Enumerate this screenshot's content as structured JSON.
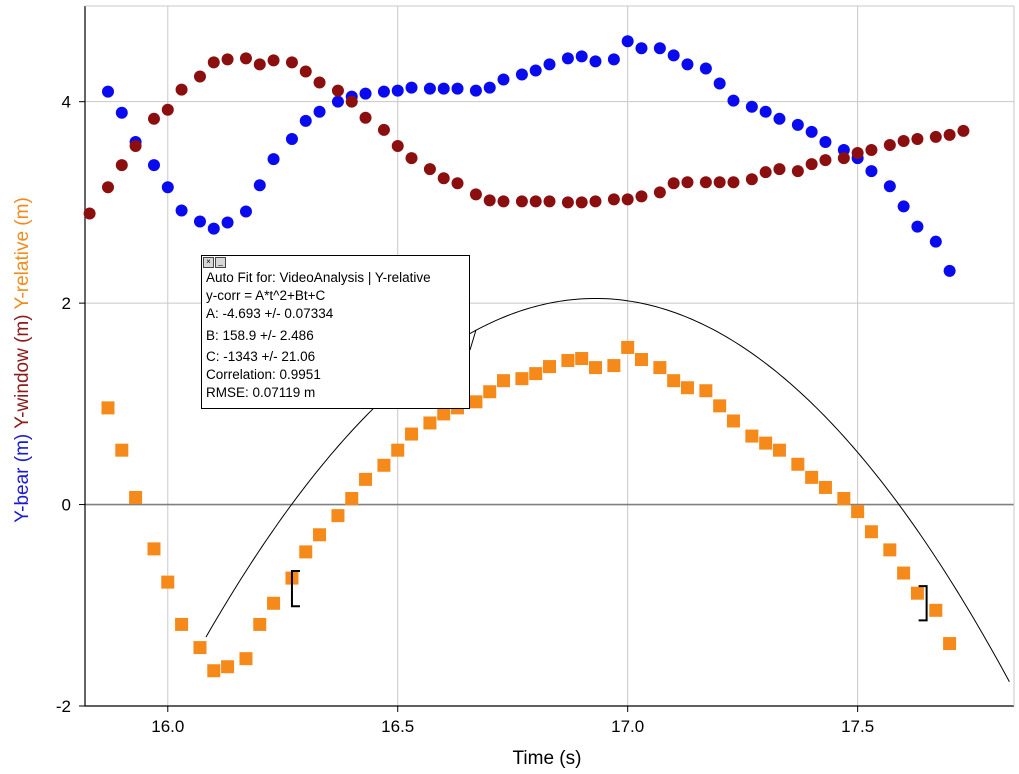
{
  "chart_data": {
    "type": "scatter",
    "xlabel": "Time (s)",
    "ylabels": [
      {
        "text": "Y-bear (m)",
        "color": "#1a1ad4"
      },
      {
        "text": "Y-window (m)",
        "color": "#8b1a1a"
      },
      {
        "text": "Y-relative (m)",
        "color": "#f08c1e"
      }
    ],
    "xlim": [
      15.82,
      17.84
    ],
    "ylim": [
      -2,
      4.95
    ],
    "x_ticks": [
      16.0,
      16.5,
      17.0,
      17.5
    ],
    "x_tick_labels": [
      "16.0",
      "16.5",
      "17.0",
      "17.5"
    ],
    "y_ticks": [
      -2,
      0,
      2,
      4
    ],
    "y_tick_labels": [
      "-2",
      "0",
      "2",
      "4"
    ],
    "grid": true,
    "series": [
      {
        "name": "Y-bear",
        "color": "#0a0aee",
        "marker": "circle",
        "points": [
          [
            15.87,
            4.1
          ],
          [
            15.9,
            3.89
          ],
          [
            15.93,
            3.6
          ],
          [
            15.97,
            3.37
          ],
          [
            16.0,
            3.15
          ],
          [
            16.03,
            2.92
          ],
          [
            16.07,
            2.81
          ],
          [
            16.1,
            2.74
          ],
          [
            16.13,
            2.8
          ],
          [
            16.17,
            2.91
          ],
          [
            16.2,
            3.17
          ],
          [
            16.23,
            3.43
          ],
          [
            16.27,
            3.63
          ],
          [
            16.3,
            3.81
          ],
          [
            16.33,
            3.9
          ],
          [
            16.37,
            4.0
          ],
          [
            16.4,
            4.05
          ],
          [
            16.43,
            4.08
          ],
          [
            16.47,
            4.1
          ],
          [
            16.5,
            4.11
          ],
          [
            16.53,
            4.14
          ],
          [
            16.57,
            4.13
          ],
          [
            16.6,
            4.13
          ],
          [
            16.63,
            4.13
          ],
          [
            16.67,
            4.11
          ],
          [
            16.7,
            4.14
          ],
          [
            16.73,
            4.22
          ],
          [
            16.77,
            4.27
          ],
          [
            16.8,
            4.31
          ],
          [
            16.83,
            4.37
          ],
          [
            16.87,
            4.43
          ],
          [
            16.9,
            4.45
          ],
          [
            16.93,
            4.4
          ],
          [
            16.97,
            4.42
          ],
          [
            17.0,
            4.6
          ],
          [
            17.03,
            4.53
          ],
          [
            17.07,
            4.53
          ],
          [
            17.1,
            4.46
          ],
          [
            17.13,
            4.37
          ],
          [
            17.17,
            4.33
          ],
          [
            17.2,
            4.18
          ],
          [
            17.23,
            4.01
          ],
          [
            17.27,
            3.95
          ],
          [
            17.3,
            3.9
          ],
          [
            17.33,
            3.83
          ],
          [
            17.37,
            3.77
          ],
          [
            17.4,
            3.7
          ],
          [
            17.43,
            3.6
          ],
          [
            17.47,
            3.52
          ],
          [
            17.5,
            3.44
          ],
          [
            17.53,
            3.31
          ],
          [
            17.57,
            3.16
          ],
          [
            17.6,
            2.96
          ],
          [
            17.63,
            2.76
          ],
          [
            17.67,
            2.61
          ],
          [
            17.7,
            2.32
          ]
        ]
      },
      {
        "name": "Y-window",
        "color": "#8c0f0f",
        "marker": "circle",
        "points": [
          [
            15.83,
            2.89
          ],
          [
            15.87,
            3.15
          ],
          [
            15.9,
            3.37
          ],
          [
            15.93,
            3.56
          ],
          [
            15.97,
            3.83
          ],
          [
            16.0,
            3.92
          ],
          [
            16.03,
            4.12
          ],
          [
            16.07,
            4.25
          ],
          [
            16.1,
            4.39
          ],
          [
            16.13,
            4.42
          ],
          [
            16.17,
            4.43
          ],
          [
            16.2,
            4.37
          ],
          [
            16.23,
            4.41
          ],
          [
            16.27,
            4.39
          ],
          [
            16.3,
            4.3
          ],
          [
            16.33,
            4.19
          ],
          [
            16.37,
            4.11
          ],
          [
            16.4,
            4.0
          ],
          [
            16.43,
            3.84
          ],
          [
            16.47,
            3.72
          ],
          [
            16.5,
            3.56
          ],
          [
            16.53,
            3.44
          ],
          [
            16.57,
            3.33
          ],
          [
            16.6,
            3.24
          ],
          [
            16.63,
            3.19
          ],
          [
            16.67,
            3.08
          ],
          [
            16.7,
            3.02
          ],
          [
            16.73,
            3.01
          ],
          [
            16.77,
            3.01
          ],
          [
            16.8,
            3.01
          ],
          [
            16.83,
            3.01
          ],
          [
            16.87,
            3.0
          ],
          [
            16.9,
            3.0
          ],
          [
            16.93,
            3.01
          ],
          [
            16.97,
            3.03
          ],
          [
            17.0,
            3.03
          ],
          [
            17.03,
            3.06
          ],
          [
            17.07,
            3.1
          ],
          [
            17.1,
            3.19
          ],
          [
            17.13,
            3.2
          ],
          [
            17.17,
            3.2
          ],
          [
            17.2,
            3.2
          ],
          [
            17.23,
            3.2
          ],
          [
            17.27,
            3.23
          ],
          [
            17.3,
            3.3
          ],
          [
            17.33,
            3.33
          ],
          [
            17.37,
            3.31
          ],
          [
            17.4,
            3.38
          ],
          [
            17.43,
            3.42
          ],
          [
            17.47,
            3.44
          ],
          [
            17.5,
            3.49
          ],
          [
            17.53,
            3.52
          ],
          [
            17.57,
            3.57
          ],
          [
            17.6,
            3.61
          ],
          [
            17.63,
            3.63
          ],
          [
            17.67,
            3.65
          ],
          [
            17.7,
            3.67
          ],
          [
            17.73,
            3.71
          ]
        ]
      },
      {
        "name": "Y-relative",
        "color": "#f58a1a",
        "marker": "square",
        "points": [
          [
            15.87,
            0.96
          ],
          [
            15.9,
            0.54
          ],
          [
            15.93,
            0.07
          ],
          [
            15.97,
            -0.44
          ],
          [
            16.0,
            -0.77
          ],
          [
            16.03,
            -1.19
          ],
          [
            16.07,
            -1.42
          ],
          [
            16.1,
            -1.65
          ],
          [
            16.13,
            -1.61
          ],
          [
            16.17,
            -1.53
          ],
          [
            16.2,
            -1.19
          ],
          [
            16.23,
            -0.98
          ],
          [
            16.27,
            -0.73
          ],
          [
            16.3,
            -0.47
          ],
          [
            16.33,
            -0.3
          ],
          [
            16.37,
            -0.11
          ],
          [
            16.4,
            0.06
          ],
          [
            16.43,
            0.25
          ],
          [
            16.47,
            0.39
          ],
          [
            16.5,
            0.54
          ],
          [
            16.53,
            0.7
          ],
          [
            16.57,
            0.81
          ],
          [
            16.6,
            0.9
          ],
          [
            16.63,
            0.96
          ],
          [
            16.67,
            1.02
          ],
          [
            16.7,
            1.12
          ],
          [
            16.73,
            1.23
          ],
          [
            16.77,
            1.25
          ],
          [
            16.8,
            1.3
          ],
          [
            16.83,
            1.37
          ],
          [
            16.87,
            1.43
          ],
          [
            16.9,
            1.45
          ],
          [
            16.93,
            1.36
          ],
          [
            16.97,
            1.38
          ],
          [
            17.0,
            1.56
          ],
          [
            17.03,
            1.44
          ],
          [
            17.07,
            1.36
          ],
          [
            17.1,
            1.23
          ],
          [
            17.13,
            1.16
          ],
          [
            17.17,
            1.13
          ],
          [
            17.2,
            0.98
          ],
          [
            17.23,
            0.83
          ],
          [
            17.27,
            0.68
          ],
          [
            17.3,
            0.61
          ],
          [
            17.33,
            0.54
          ],
          [
            17.37,
            0.4
          ],
          [
            17.4,
            0.27
          ],
          [
            17.43,
            0.17
          ],
          [
            17.47,
            0.06
          ],
          [
            17.5,
            -0.07
          ],
          [
            17.53,
            -0.27
          ],
          [
            17.57,
            -0.45
          ],
          [
            17.6,
            -0.68
          ],
          [
            17.63,
            -0.88
          ],
          [
            17.67,
            -1.05
          ],
          [
            17.7,
            -1.38
          ]
        ]
      }
    ],
    "fit": {
      "equation": "y = A*t^2 + B*t + C",
      "A": -4.693,
      "B": 158.9,
      "C": -1343,
      "range": [
        16.083,
        17.83
      ],
      "bracket_left_x": 16.27,
      "bracket_right_x": 17.65,
      "bracket_left_y": [
        -0.66,
        -1.01
      ],
      "bracket_right_y": [
        -0.81,
        -1.15
      ]
    }
  },
  "fit_box": {
    "close_glyph": "×",
    "min_glyph": "_",
    "title": "Auto Fit for: VideoAnalysis | Y-relative",
    "equation": "y-corr = A*t^2+Bt+C",
    "a": "A: -4.693 +/- 0.07334",
    "b": "B: 158.9 +/- 2.486",
    "c": "C: -1343 +/- 21.06",
    "correlation": "Correlation: 0.9951",
    "rmse": "RMSE: 0.07119 m",
    "leader_point": [
      16.67,
      1.55
    ]
  }
}
